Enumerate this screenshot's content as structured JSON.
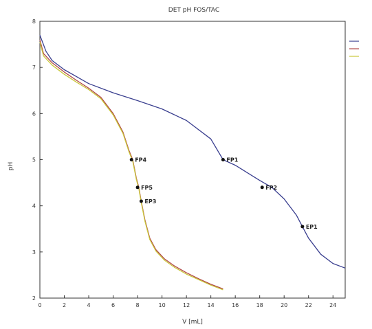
{
  "chart_data": {
    "type": "line",
    "title": "DET pH FOS/TAC",
    "xlabel": "V [mL]",
    "ylabel": "pH",
    "xlim": [
      0,
      25
    ],
    "ylim": [
      2,
      8
    ],
    "xticks": [
      "0",
      "2",
      "4",
      "6",
      "8",
      "10",
      "12",
      "14",
      "16",
      "18",
      "20",
      "22",
      "24"
    ],
    "yticks": [
      "2",
      "3",
      "4",
      "5",
      "6",
      "7",
      "8"
    ],
    "grid": false,
    "legend": "right",
    "series": [
      {
        "color": "#3a3f8f",
        "x": [
          0,
          0.5,
          1,
          2,
          3,
          4,
          6,
          8,
          10,
          12,
          14,
          15,
          16,
          18,
          19,
          20,
          21,
          21.5,
          22,
          23,
          24,
          25
        ],
        "y": [
          7.7,
          7.35,
          7.15,
          6.95,
          6.8,
          6.65,
          6.45,
          6.28,
          6.1,
          5.85,
          5.45,
          5.0,
          4.88,
          4.55,
          4.4,
          4.15,
          3.8,
          3.55,
          3.3,
          2.95,
          2.75,
          2.65
        ]
      },
      {
        "color": "#b14848",
        "x": [
          0,
          0.3,
          1,
          2,
          3,
          4,
          5,
          6,
          6.8,
          7.3,
          7.6,
          7.9,
          8.1,
          8.3,
          8.6,
          9,
          9.5,
          10.2,
          11,
          12,
          13,
          14,
          15
        ],
        "y": [
          7.6,
          7.3,
          7.1,
          6.9,
          6.72,
          6.55,
          6.35,
          6.0,
          5.6,
          5.2,
          5.0,
          4.6,
          4.4,
          4.1,
          3.7,
          3.3,
          3.05,
          2.85,
          2.7,
          2.55,
          2.42,
          2.3,
          2.2
        ]
      },
      {
        "color": "#c9c83a",
        "x": [
          0,
          0.3,
          1,
          2,
          3,
          4,
          5,
          6,
          6.8,
          7.3,
          7.6,
          7.9,
          8.1,
          8.3,
          8.6,
          9,
          9.5,
          10.2,
          11,
          12,
          13,
          14,
          15
        ],
        "y": [
          7.55,
          7.25,
          7.05,
          6.85,
          6.68,
          6.52,
          6.32,
          5.97,
          5.57,
          5.17,
          4.97,
          4.57,
          4.37,
          4.07,
          3.67,
          3.27,
          3.02,
          2.82,
          2.67,
          2.52,
          2.4,
          2.28,
          2.18
        ]
      }
    ],
    "points": [
      {
        "label": "FP1",
        "x": 15.0,
        "y": 5.0
      },
      {
        "label": "FP2",
        "x": 18.2,
        "y": 4.4
      },
      {
        "label": "EP1",
        "x": 21.5,
        "y": 3.55
      },
      {
        "label": "FP4",
        "x": 7.5,
        "y": 5.0
      },
      {
        "label": "FP5",
        "x": 8.0,
        "y": 4.4
      },
      {
        "label": "EP3",
        "x": 8.3,
        "y": 4.1
      }
    ]
  }
}
